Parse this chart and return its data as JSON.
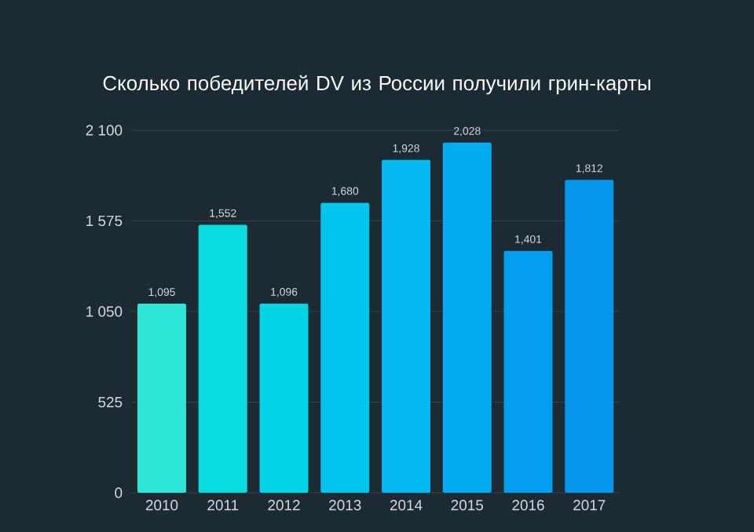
{
  "chart_data": {
    "type": "bar",
    "title": "Сколько победителей DV из России получили грин-карты",
    "categories": [
      "2010",
      "2011",
      "2012",
      "2013",
      "2014",
      "2015",
      "2016",
      "2017"
    ],
    "values": [
      1095,
      1552,
      1096,
      1680,
      1928,
      2028,
      1401,
      1812
    ],
    "value_labels": [
      "1,095",
      "1,552",
      "1,096",
      "1,680",
      "1,928",
      "2,028",
      "1,401",
      "1,812"
    ],
    "colors": [
      "#2ee6d6",
      "#08dce0",
      "#04d4e6",
      "#03c4ec",
      "#04b8f0",
      "#03acf0",
      "#049ef0",
      "#0696ec"
    ],
    "ylim": [
      0,
      2100
    ],
    "yticks": [
      0,
      525,
      {
        "value": 1050,
        "label": "1 050"
      },
      {
        "value": 1575,
        "label": "1 575"
      },
      {
        "value": 2100,
        "label": "2 100"
      }
    ],
    "grid": "y"
  }
}
